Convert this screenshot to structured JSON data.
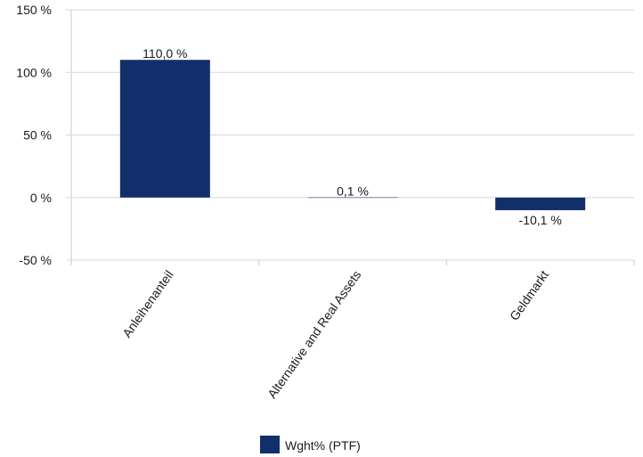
{
  "chart_data": {
    "type": "bar",
    "categories": [
      "Anleihenanteil",
      "Alternative and Real Assets",
      "Geldmarkt"
    ],
    "series": [
      {
        "name": "Wght% (PTF)",
        "values": [
          110.0,
          0.1,
          -10.1
        ]
      }
    ],
    "value_labels": [
      "110,0 %",
      "0,1 %",
      "-10,1 %"
    ],
    "ylim": [
      -50,
      150
    ],
    "yticks": [
      {
        "value": 150,
        "label": "150 %"
      },
      {
        "value": 100,
        "label": "100 %"
      },
      {
        "value": 50,
        "label": "50 %"
      },
      {
        "value": 0,
        "label": "0 %"
      },
      {
        "value": -50,
        "label": "-50 %"
      }
    ],
    "grid": true,
    "legend_position": "bottom",
    "colors": {
      "bar": "#132f6b"
    }
  }
}
